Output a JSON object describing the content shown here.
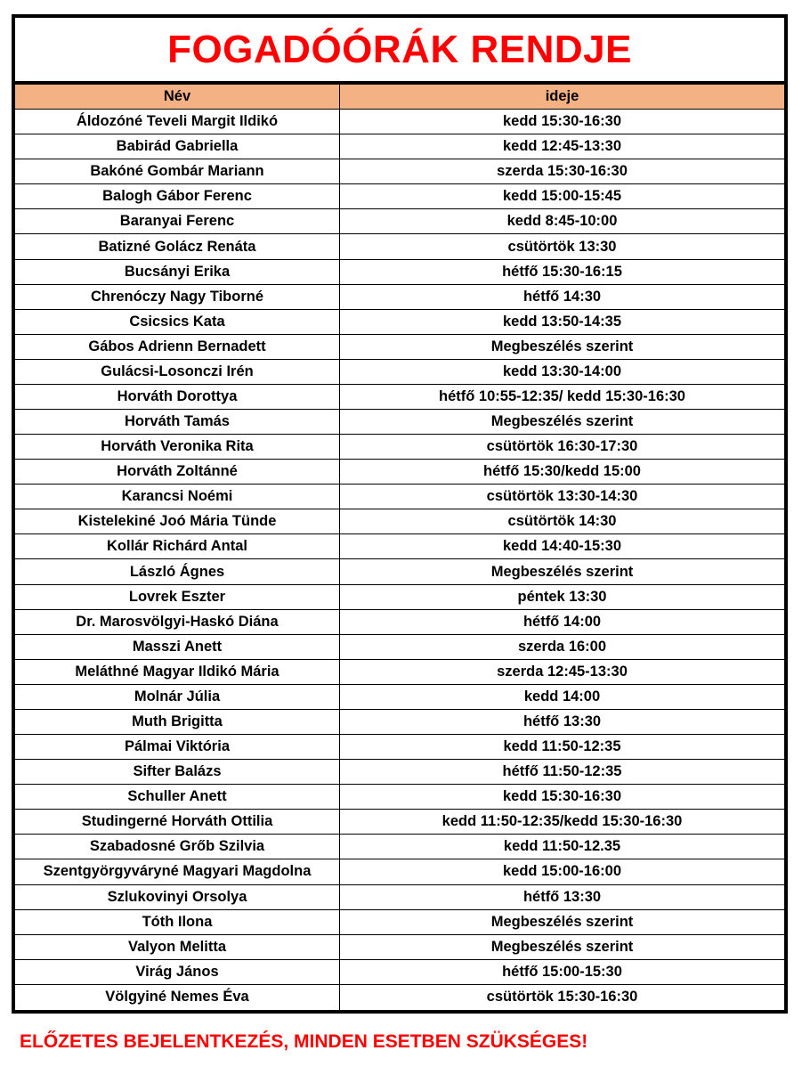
{
  "title": "FOGADÓÓRÁK RENDJE",
  "header": {
    "name": "Név",
    "time": "ideje"
  },
  "header_color": "#f4b183",
  "title_color": "#ff0000",
  "rows": [
    {
      "name": "Áldozóné Teveli Margit Ildikó",
      "time": "kedd 15:30-16:30"
    },
    {
      "name": "Babirád Gabriella",
      "time": "kedd 12:45-13:30"
    },
    {
      "name": "Bakóné Gombár Mariann",
      "time": "szerda 15:30-16:30"
    },
    {
      "name": "Balogh Gábor Ferenc",
      "time": "kedd 15:00-15:45"
    },
    {
      "name": "Baranyai Ferenc",
      "time": "kedd 8:45-10:00"
    },
    {
      "name": "Batizné Golácz Renáta",
      "time": "csütörtök 13:30"
    },
    {
      "name": "Bucsányi Erika",
      "time": "hétfő 15:30-16:15"
    },
    {
      "name": "Chrenóczy Nagy Tiborné",
      "time": "hétfő 14:30"
    },
    {
      "name": "Csicsics Kata",
      "time": "kedd 13:50-14:35"
    },
    {
      "name": "Gábos Adrienn Bernadett",
      "time": "Megbeszélés szerint"
    },
    {
      "name": "Gulácsi-Losonczi Irén",
      "time": "kedd 13:30-14:00"
    },
    {
      "name": "Horváth Dorottya",
      "time": "hétfő 10:55-12:35/ kedd 15:30-16:30"
    },
    {
      "name": "Horváth Tamás",
      "time": "Megbeszélés szerint"
    },
    {
      "name": "Horváth Veronika Rita",
      "time": "csütörtök 16:30-17:30"
    },
    {
      "name": "Horváth Zoltánné",
      "time": "hétfő 15:30/kedd 15:00"
    },
    {
      "name": "Karancsi Noémi",
      "time": "csütörtök 13:30-14:30"
    },
    {
      "name": "Kistelekiné Joó Mária Tünde",
      "time": "csütörtök 14:30"
    },
    {
      "name": "Kollár Richárd Antal",
      "time": "kedd 14:40-15:30"
    },
    {
      "name": "László Ágnes",
      "time": "Megbeszélés szerint"
    },
    {
      "name": "Lovrek Eszter",
      "time": "péntek 13:30"
    },
    {
      "name": "Dr. Marosvölgyi-Haskó Diána",
      "time": "hétfő 14:00"
    },
    {
      "name": "Masszi Anett",
      "time": "szerda 16:00"
    },
    {
      "name": "Meláthné Magyar Ildikó Mária",
      "time": "szerda 12:45-13:30"
    },
    {
      "name": "Molnár Júlia",
      "time": "kedd 14:00"
    },
    {
      "name": "Muth Brigitta",
      "time": "hétfő 13:30"
    },
    {
      "name": "Pálmai Viktória",
      "time": "kedd 11:50-12:35"
    },
    {
      "name": "Sifter Balázs",
      "time": "hétfő 11:50-12:35"
    },
    {
      "name": "Schuller Anett",
      "time": "kedd 15:30-16:30"
    },
    {
      "name": "Studingerné Horváth Ottilia",
      "time": "kedd 11:50-12:35/kedd 15:30-16:30"
    },
    {
      "name": "Szabadosné Grőb Szilvia",
      "time": "kedd 11:50-12.35"
    },
    {
      "name": "Szentgyörgyváryné Magyari Magdolna",
      "time": "kedd 15:00-16:00"
    },
    {
      "name": "Szlukovinyi Orsolya",
      "time": "hétfő 13:30"
    },
    {
      "name": "Tóth Ilona",
      "time": "Megbeszélés szerint"
    },
    {
      "name": "Valyon Melitta",
      "time": "Megbeszélés szerint"
    },
    {
      "name": "Virág János",
      "time": "hétfő 15:00-15:30"
    },
    {
      "name": "Völgyiné Nemes Éva",
      "time": "csütörtök 15:30-16:30"
    }
  ],
  "footer": "ELŐZETES BEJELENTKEZÉS, MINDEN ESETBEN SZÜKSÉGES!"
}
